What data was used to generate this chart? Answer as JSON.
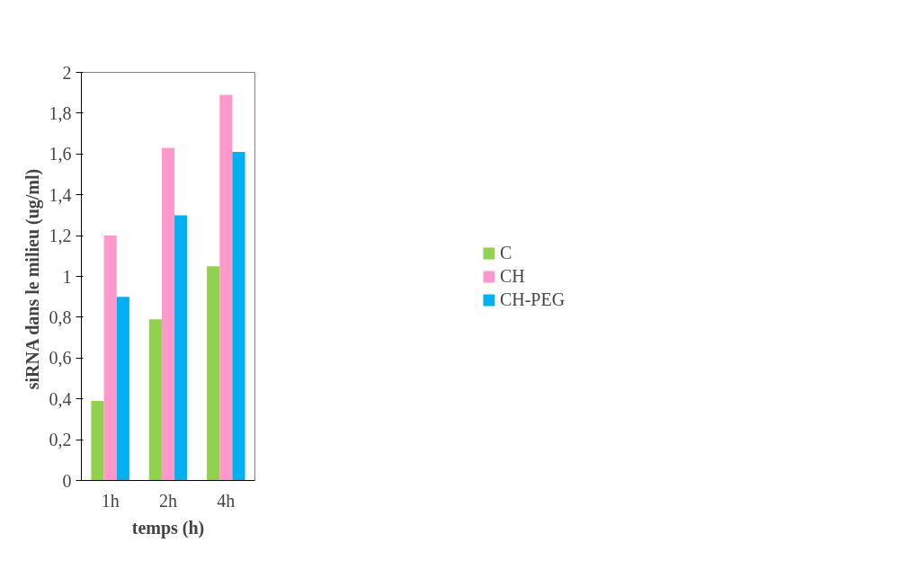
{
  "chart_data": {
    "type": "bar",
    "xlabel": "temps (h)",
    "ylabel": "siRNA dans le milieu  (ug/ml)",
    "categories": [
      "1h",
      "2h",
      "4h"
    ],
    "series": [
      {
        "name": "C",
        "color": "#92d050",
        "values": [
          0.39,
          0.79,
          1.05
        ]
      },
      {
        "name": "CH",
        "color": "#ff99cc",
        "values": [
          1.2,
          1.63,
          1.89
        ]
      },
      {
        "name": "CH-PEG",
        "color": "#00b0f0",
        "values": [
          0.9,
          1.3,
          1.61
        ]
      }
    ],
    "ylim": [
      0,
      2
    ],
    "yticks": [
      0,
      {
        "value": 0.2,
        "label": "0,2"
      },
      {
        "value": 0.4,
        "label": "0,4"
      },
      {
        "value": 0.6,
        "label": "0,6"
      },
      {
        "value": 0.8,
        "label": "0,8"
      },
      1,
      {
        "value": 1.2,
        "label": "1,2"
      },
      {
        "value": 1.4,
        "label": "1,4"
      },
      {
        "value": 1.6,
        "label": "1,6"
      },
      {
        "value": 1.8,
        "label": "1,8"
      },
      2
    ],
    "grid": false,
    "legend": "right"
  }
}
